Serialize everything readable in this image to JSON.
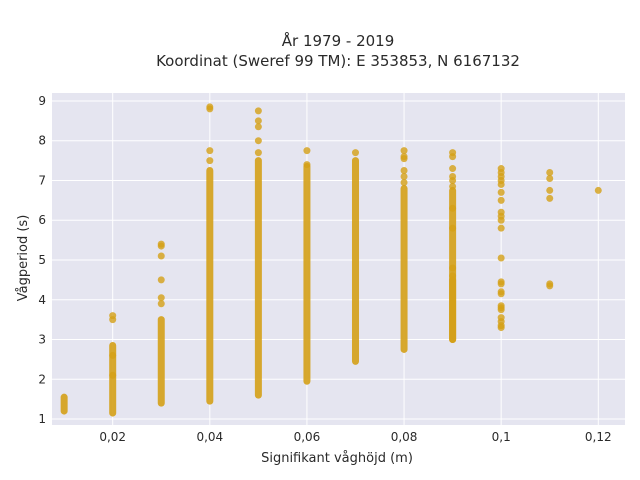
{
  "chart_data": {
    "type": "scatter",
    "title": "År 1979 - 2019",
    "subtitle": "Koordinat (Sweref 99 TM): E 353853, N 6167132",
    "xlabel": "Signifikant våghöjd (m)",
    "ylabel": "Vågperiod (s)",
    "xlim": [
      0.0075,
      0.1255
    ],
    "ylim": [
      0.85,
      9.2
    ],
    "x_ticks": [
      0.02,
      0.04,
      0.06,
      0.08,
      0.1,
      0.12
    ],
    "x_tick_labels": [
      "0,02",
      "0,04",
      "0,06",
      "0,08",
      "0,1",
      "0,12"
    ],
    "y_ticks": [
      1,
      2,
      3,
      4,
      5,
      6,
      7,
      8,
      9
    ],
    "y_tick_labels": [
      "1",
      "2",
      "3",
      "4",
      "5",
      "6",
      "7",
      "8",
      "9"
    ],
    "grid": true,
    "marker_color": "#d4a017",
    "plot_background": "#e5e5f0",
    "ranges": [
      {
        "x": 0.01,
        "ymin": 1.2,
        "ymax": 1.55
      },
      {
        "x": 0.02,
        "ymin": 1.15,
        "ymax": 2.85
      },
      {
        "x": 0.03,
        "ymin": 1.4,
        "ymax": 3.5
      },
      {
        "x": 0.04,
        "ymin": 1.45,
        "ymax": 7.25
      },
      {
        "x": 0.05,
        "ymin": 1.6,
        "ymax": 7.5
      },
      {
        "x": 0.06,
        "ymin": 1.95,
        "ymax": 7.35
      },
      {
        "x": 0.07,
        "ymin": 2.45,
        "ymax": 7.5
      },
      {
        "x": 0.08,
        "ymin": 2.75,
        "ymax": 6.8
      },
      {
        "x": 0.09,
        "ymin": 3.0,
        "ymax": 6.75
      },
      {
        "x": 0.09,
        "ymin": 3.0,
        "ymax": 4.5
      }
    ],
    "points": [
      {
        "x": 0.02,
        "y": 3.5
      },
      {
        "x": 0.02,
        "y": 3.6
      },
      {
        "x": 0.02,
        "y": 2.6
      },
      {
        "x": 0.02,
        "y": 2.1
      },
      {
        "x": 0.03,
        "y": 5.35
      },
      {
        "x": 0.03,
        "y": 5.4
      },
      {
        "x": 0.03,
        "y": 5.1
      },
      {
        "x": 0.03,
        "y": 4.5
      },
      {
        "x": 0.03,
        "y": 4.05
      },
      {
        "x": 0.03,
        "y": 3.9
      },
      {
        "x": 0.04,
        "y": 8.8
      },
      {
        "x": 0.04,
        "y": 8.85
      },
      {
        "x": 0.04,
        "y": 7.75
      },
      {
        "x": 0.04,
        "y": 7.5
      },
      {
        "x": 0.05,
        "y": 8.75
      },
      {
        "x": 0.05,
        "y": 8.5
      },
      {
        "x": 0.05,
        "y": 8.35
      },
      {
        "x": 0.05,
        "y": 8.0
      },
      {
        "x": 0.05,
        "y": 7.7
      },
      {
        "x": 0.06,
        "y": 7.75
      },
      {
        "x": 0.06,
        "y": 7.4
      },
      {
        "x": 0.07,
        "y": 7.7
      },
      {
        "x": 0.08,
        "y": 7.75
      },
      {
        "x": 0.08,
        "y": 7.6
      },
      {
        "x": 0.08,
        "y": 7.55
      },
      {
        "x": 0.08,
        "y": 7.25
      },
      {
        "x": 0.08,
        "y": 7.1
      },
      {
        "x": 0.08,
        "y": 6.95
      },
      {
        "x": 0.09,
        "y": 7.7
      },
      {
        "x": 0.09,
        "y": 7.6
      },
      {
        "x": 0.09,
        "y": 7.3
      },
      {
        "x": 0.09,
        "y": 7.1
      },
      {
        "x": 0.09,
        "y": 7.0
      },
      {
        "x": 0.09,
        "y": 6.85
      },
      {
        "x": 0.09,
        "y": 6.3
      },
      {
        "x": 0.09,
        "y": 5.8
      },
      {
        "x": 0.09,
        "y": 4.8
      },
      {
        "x": 0.09,
        "y": 4.6
      },
      {
        "x": 0.1,
        "y": 7.3
      },
      {
        "x": 0.1,
        "y": 7.2
      },
      {
        "x": 0.1,
        "y": 7.1
      },
      {
        "x": 0.1,
        "y": 7.0
      },
      {
        "x": 0.1,
        "y": 6.9
      },
      {
        "x": 0.1,
        "y": 6.7
      },
      {
        "x": 0.1,
        "y": 6.5
      },
      {
        "x": 0.1,
        "y": 6.2
      },
      {
        "x": 0.1,
        "y": 6.1
      },
      {
        "x": 0.1,
        "y": 6.0
      },
      {
        "x": 0.1,
        "y": 5.8
      },
      {
        "x": 0.1,
        "y": 5.05
      },
      {
        "x": 0.1,
        "y": 4.45
      },
      {
        "x": 0.1,
        "y": 4.4
      },
      {
        "x": 0.1,
        "y": 4.2
      },
      {
        "x": 0.1,
        "y": 4.15
      },
      {
        "x": 0.1,
        "y": 3.85
      },
      {
        "x": 0.1,
        "y": 3.8
      },
      {
        "x": 0.1,
        "y": 3.75
      },
      {
        "x": 0.1,
        "y": 3.55
      },
      {
        "x": 0.1,
        "y": 3.45
      },
      {
        "x": 0.1,
        "y": 3.35
      },
      {
        "x": 0.1,
        "y": 3.3
      },
      {
        "x": 0.11,
        "y": 7.2
      },
      {
        "x": 0.11,
        "y": 7.05
      },
      {
        "x": 0.11,
        "y": 6.75
      },
      {
        "x": 0.11,
        "y": 6.55
      },
      {
        "x": 0.11,
        "y": 4.4
      },
      {
        "x": 0.11,
        "y": 4.35
      },
      {
        "x": 0.12,
        "y": 6.75
      }
    ]
  }
}
